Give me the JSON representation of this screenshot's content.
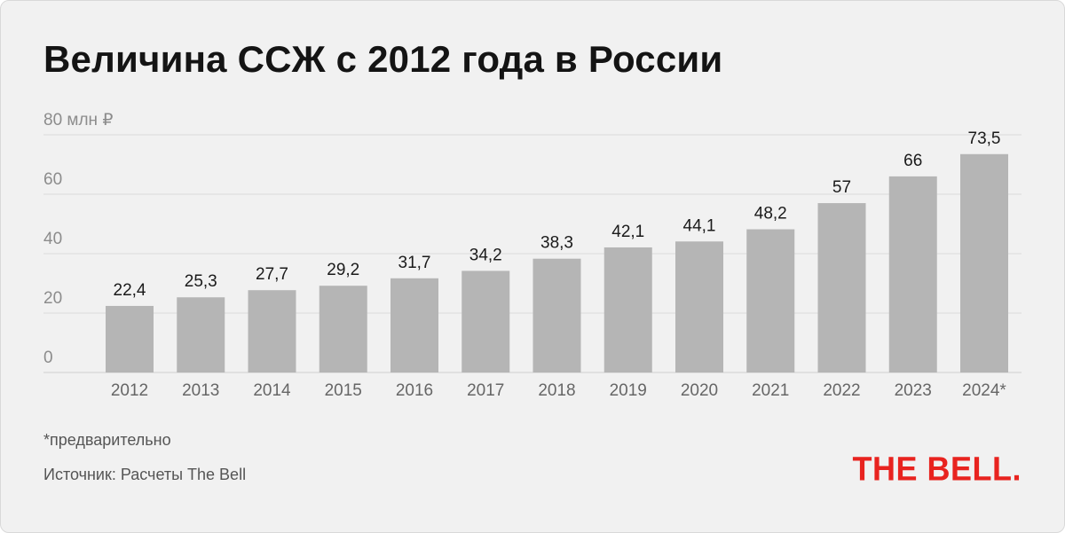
{
  "title": "Величина ССЖ с 2012 года в России",
  "footnote": "*предварительно",
  "source": "Источник: Расчеты The Bell",
  "logo": "THE BELL.",
  "colors": {
    "background": "#f1f1f1",
    "bar": "#b5b5b5",
    "grid": "#dcdcdc",
    "logo": "#e8231f"
  },
  "chart_data": {
    "type": "bar",
    "categories": [
      "2012",
      "2013",
      "2014",
      "2015",
      "2016",
      "2017",
      "2018",
      "2019",
      "2020",
      "2021",
      "2022",
      "2023",
      "2024*"
    ],
    "values": [
      22.4,
      25.3,
      27.7,
      29.2,
      31.7,
      34.2,
      38.3,
      42.1,
      44.1,
      48.2,
      57,
      66,
      73.5
    ],
    "data_labels": [
      "22,4",
      "25,3",
      "27,7",
      "29,2",
      "31,7",
      "34,2",
      "38,3",
      "42,1",
      "44,1",
      "48,2",
      "57",
      "66",
      "73,5"
    ],
    "yticks": [
      0,
      20,
      40,
      60,
      80
    ],
    "ytick_labels": [
      "0",
      "20",
      "40",
      "60",
      "80 млн ₽"
    ],
    "ylim": [
      0,
      80
    ],
    "grid": true,
    "legend": "none"
  }
}
